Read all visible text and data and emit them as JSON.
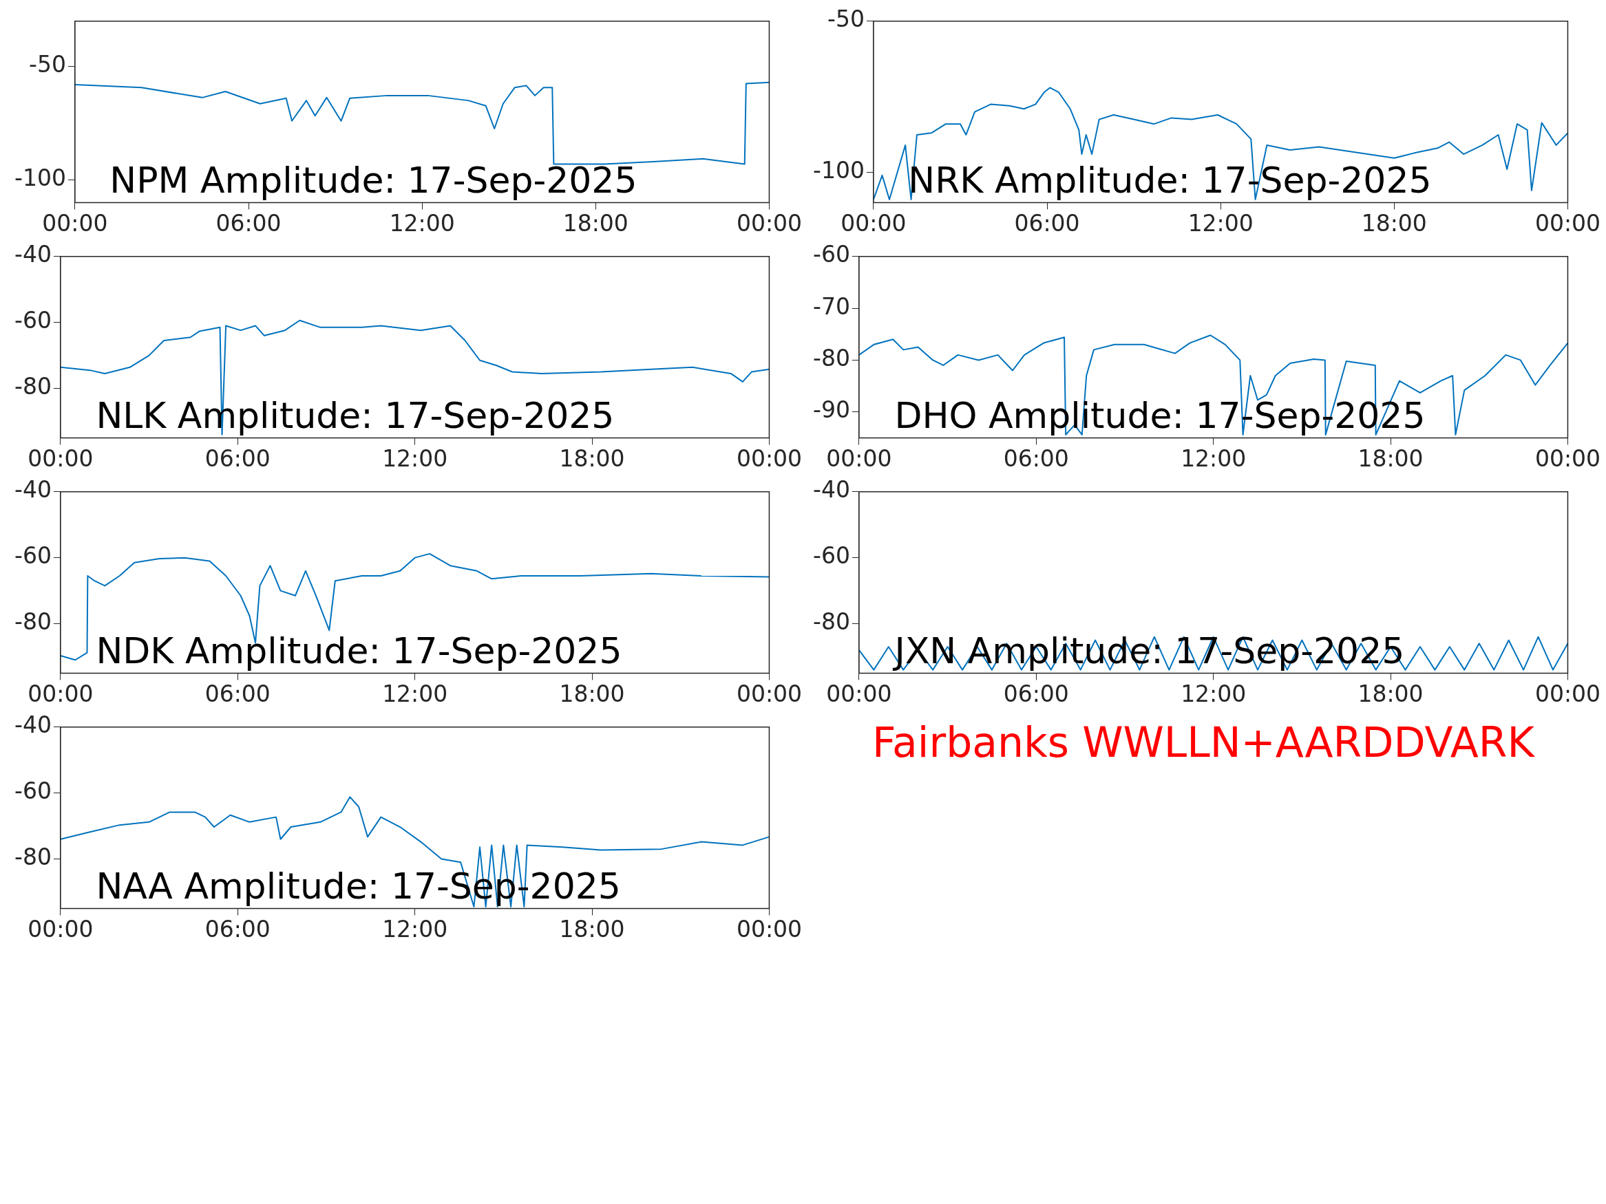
{
  "chart_data": [
    {
      "type": "line",
      "title": "NPM Amplitude: 17-Sep-2025",
      "color": "#0072bd",
      "xlim": [
        0,
        24
      ],
      "xticks": [
        {
          "value": 0,
          "label": "00:00"
        },
        {
          "value": 6,
          "label": "06:00"
        },
        {
          "value": 12,
          "label": "12:00"
        },
        {
          "value": 18,
          "label": "18:00"
        },
        {
          "value": 24,
          "label": "00:00"
        }
      ],
      "ylim": [
        -110,
        -30
      ],
      "yticks": [
        -100,
        -50
      ],
      "x": [
        0,
        2.3,
        4.4,
        5.2,
        6.4,
        7.3,
        7.5,
        8,
        8.3,
        8.7,
        9.2,
        9.5,
        10.8,
        12.2,
        13.6,
        14.2,
        14.5,
        14.8,
        15.2,
        15.6,
        15.9,
        16.2,
        16.5,
        16.55,
        18.3,
        20,
        21.7,
        23.15,
        23.2,
        24
      ],
      "values": [
        -58,
        -59.3,
        -63.7,
        -61,
        -66.4,
        -64,
        -74,
        -65,
        -71.7,
        -63.7,
        -74,
        -64,
        -62.8,
        -62.8,
        -65,
        -67.3,
        -77.4,
        -66.4,
        -59.3,
        -58.4,
        -62.8,
        -59.3,
        -59.3,
        -93,
        -93,
        -92,
        -90.7,
        -93,
        -57.5,
        -57
      ]
    },
    {
      "type": "line",
      "title": "NRK Amplitude: 17-Sep-2025",
      "color": "#0072bd",
      "xlim": [
        0,
        24
      ],
      "xticks": [
        {
          "value": 0,
          "label": "00:00"
        },
        {
          "value": 6,
          "label": "06:00"
        },
        {
          "value": 12,
          "label": "12:00"
        },
        {
          "value": 18,
          "label": "18:00"
        },
        {
          "value": 24,
          "label": "00:00"
        }
      ],
      "ylim": [
        -110,
        -50
      ],
      "yticks": [
        -100,
        -50
      ],
      "x": [
        0,
        0.3,
        0.55,
        1.1,
        1.3,
        1.5,
        2,
        2.5,
        3,
        3.2,
        3.5,
        4.05,
        4.7,
        5.2,
        5.6,
        5.9,
        6.1,
        6.4,
        6.8,
        7.1,
        7.2,
        7.35,
        7.55,
        7.8,
        8.3,
        9,
        9.7,
        10.3,
        11,
        11.9,
        12.55,
        13.05,
        13.2,
        13.6,
        14.4,
        15.4,
        16.8,
        18,
        18.7,
        19.5,
        19.9,
        20.4,
        21.05,
        21.6,
        21.9,
        22.25,
        22.6,
        22.75,
        23.1,
        23.6,
        24
      ],
      "values": [
        -109,
        -101,
        -109,
        -91,
        -109,
        -87.6,
        -87,
        -84,
        -84,
        -87.6,
        -80,
        -77.5,
        -78,
        -79,
        -77.5,
        -73.5,
        -72,
        -73.5,
        -79,
        -86,
        -94,
        -87.6,
        -94,
        -82.5,
        -81,
        -82.5,
        -84,
        -82,
        -82.5,
        -81,
        -84,
        -89,
        -109,
        -91,
        -92.6,
        -91.6,
        -93.6,
        -95.3,
        -93.6,
        -92,
        -90,
        -94,
        -91,
        -87.6,
        -99,
        -84,
        -86,
        -106,
        -83.6,
        -91,
        -87
      ]
    },
    {
      "type": "line",
      "title": "NLK Amplitude: 17-Sep-2025",
      "color": "#0072bd",
      "xlim": [
        0,
        24
      ],
      "xticks": [
        {
          "value": 0,
          "label": "00:00"
        },
        {
          "value": 6,
          "label": "06:00"
        },
        {
          "value": 12,
          "label": "12:00"
        },
        {
          "value": 18,
          "label": "18:00"
        },
        {
          "value": 24,
          "label": "00:00"
        }
      ],
      "ylim": [
        -95,
        -40
      ],
      "yticks": [
        -80,
        -60,
        -40
      ],
      "x": [
        0,
        1,
        1.5,
        2.35,
        3,
        3.5,
        4.4,
        4.7,
        5.4,
        5.47,
        5.6,
        6.1,
        6.6,
        6.9,
        7.6,
        8.1,
        8.8,
        10.2,
        10.85,
        12.2,
        13.2,
        13.7,
        14.2,
        14.75,
        15.3,
        16.3,
        18.3,
        20,
        21.4,
        22.7,
        23.1,
        23.4,
        24
      ],
      "values": [
        -73.6,
        -74.5,
        -75.5,
        -73.6,
        -70,
        -65.5,
        -64.5,
        -62.7,
        -61.5,
        -94,
        -61,
        -62.4,
        -61,
        -64,
        -62.4,
        -59.4,
        -61.5,
        -61.5,
        -61,
        -62.4,
        -61,
        -65.5,
        -71.5,
        -73,
        -75,
        -75.5,
        -75,
        -74.2,
        -73.6,
        -75.5,
        -78,
        -75,
        -74.2
      ]
    },
    {
      "type": "line",
      "title": "DHO Amplitude: 17-Sep-2025",
      "color": "#0072bd",
      "xlim": [
        0,
        24
      ],
      "xticks": [
        {
          "value": 0,
          "label": "00:00"
        },
        {
          "value": 6,
          "label": "06:00"
        },
        {
          "value": 12,
          "label": "12:00"
        },
        {
          "value": 18,
          "label": "18:00"
        },
        {
          "value": 24,
          "label": "00:00"
        }
      ],
      "ylim": [
        -95,
        -60
      ],
      "yticks": [
        -90,
        -80,
        -70,
        -60
      ],
      "x": [
        0,
        0.5,
        1.15,
        1.5,
        2,
        2.5,
        2.85,
        3.35,
        4.05,
        4.7,
        5.2,
        5.6,
        6.25,
        6.95,
        7,
        7.3,
        7.55,
        7.7,
        7.95,
        8.65,
        9.65,
        10.7,
        11.2,
        11.9,
        12.4,
        12.9,
        13,
        13.25,
        13.5,
        13.8,
        14.1,
        14.6,
        15.4,
        15.78,
        15.8,
        16.5,
        17.48,
        17.5,
        18.3,
        19,
        19.7,
        20.1,
        20.2,
        20.5,
        21.2,
        21.9,
        22.4,
        22.9,
        23.4,
        24
      ],
      "values": [
        -79,
        -77,
        -76,
        -78,
        -77.5,
        -80,
        -81,
        -79,
        -80,
        -79,
        -82,
        -79,
        -76.7,
        -75.6,
        -94.4,
        -92.5,
        -94.4,
        -83,
        -78,
        -77,
        -77,
        -78.7,
        -76.7,
        -75.2,
        -77,
        -80,
        -94.4,
        -83,
        -87.7,
        -86.7,
        -83,
        -80.6,
        -79.8,
        -80,
        -94.4,
        -80.2,
        -81,
        -94.4,
        -84,
        -86.3,
        -84,
        -83,
        -94.4,
        -85.8,
        -83,
        -79,
        -80,
        -84.8,
        -81,
        -76.7
      ]
    },
    {
      "type": "line",
      "title": "NDK Amplitude: 17-Sep-2025",
      "color": "#0072bd",
      "xlim": [
        0,
        24
      ],
      "xticks": [
        {
          "value": 0,
          "label": "00:00"
        },
        {
          "value": 6,
          "label": "06:00"
        },
        {
          "value": 12,
          "label": "12:00"
        },
        {
          "value": 18,
          "label": "18:00"
        },
        {
          "value": 24,
          "label": "00:00"
        }
      ],
      "ylim": [
        -95,
        -40
      ],
      "yticks": [
        -80,
        -60,
        -40
      ],
      "x": [
        0,
        0.5,
        0.9,
        0.92,
        1.15,
        1.5,
        2,
        2.5,
        3.35,
        4.2,
        5.05,
        5.6,
        6.1,
        6.4,
        6.6,
        6.75,
        7.1,
        7.45,
        7.95,
        8.3,
        8.65,
        9.1,
        9.3,
        10.2,
        10.85,
        11.5,
        12,
        12.5,
        13.2,
        14.1,
        14.6,
        15.6,
        17.6,
        20,
        21.7,
        24
      ],
      "values": [
        -89.7,
        -91,
        -88.8,
        -65.5,
        -67,
        -68.5,
        -65.5,
        -61.5,
        -60.3,
        -60,
        -61,
        -65.5,
        -71.5,
        -77.6,
        -85.8,
        -68.5,
        -62.4,
        -70,
        -71.5,
        -64,
        -71.5,
        -82,
        -67,
        -65.5,
        -65.5,
        -64,
        -60,
        -58.8,
        -62.4,
        -64,
        -66.4,
        -65.5,
        -65.5,
        -64.8,
        -65.5,
        -65.8
      ]
    },
    {
      "type": "line",
      "title": "JXN Amplitude: 17-Sep-2025",
      "color": "#0072bd",
      "xlim": [
        0,
        24
      ],
      "xticks": [
        {
          "value": 0,
          "label": "00:00"
        },
        {
          "value": 6,
          "label": "06:00"
        },
        {
          "value": 12,
          "label": "12:00"
        },
        {
          "value": 18,
          "label": "18:00"
        },
        {
          "value": 24,
          "label": "00:00"
        }
      ],
      "ylim": [
        -95,
        -40
      ],
      "yticks": [
        -80,
        -60,
        -40
      ],
      "x": [
        0,
        0.5,
        1,
        1.5,
        2,
        2.5,
        3,
        3.5,
        4,
        4.5,
        5,
        5.5,
        6,
        6.5,
        7,
        7.5,
        8,
        8.5,
        9,
        9.5,
        10,
        10.5,
        11,
        11.5,
        12,
        12.5,
        13,
        13.5,
        14,
        14.5,
        15,
        15.5,
        16,
        16.5,
        17,
        17.5,
        18,
        18.5,
        19,
        19.5,
        20,
        20.5,
        21,
        21.5,
        22,
        22.5,
        23,
        23.5,
        24
      ],
      "values": [
        -88,
        -94,
        -87,
        -94,
        -88,
        -94,
        -87,
        -94,
        -87,
        -94,
        -86,
        -94,
        -87,
        -94,
        -86,
        -94,
        -85,
        -94,
        -85,
        -94,
        -84,
        -94,
        -84,
        -94,
        -84,
        -94,
        -84,
        -94,
        -85,
        -94,
        -85,
        -94,
        -86,
        -94,
        -86,
        -94,
        -87,
        -94,
        -87,
        -94,
        -87,
        -94,
        -86,
        -94,
        -85,
        -94,
        -84,
        -94,
        -86
      ]
    },
    {
      "type": "line",
      "title": "NAA Amplitude: 17-Sep-2025",
      "color": "#0072bd",
      "xlim": [
        0,
        24
      ],
      "xticks": [
        {
          "value": 0,
          "label": "00:00"
        },
        {
          "value": 6,
          "label": "06:00"
        },
        {
          "value": 12,
          "label": "12:00"
        },
        {
          "value": 18,
          "label": "18:00"
        },
        {
          "value": 24,
          "label": "00:00"
        }
      ],
      "ylim": [
        -95,
        -40
      ],
      "yticks": [
        -80,
        -60,
        -40
      ],
      "x": [
        0,
        1,
        2,
        3,
        3.7,
        4.55,
        4.9,
        5.2,
        5.75,
        6.4,
        7.3,
        7.45,
        7.8,
        8.8,
        9.5,
        9.8,
        10.1,
        10.4,
        10.85,
        11.5,
        12.2,
        12.9,
        13.55,
        14,
        14.2,
        14.4,
        14.6,
        14.8,
        15,
        15.25,
        15.45,
        15.7,
        15.8,
        17,
        18.3,
        20.35,
        21.7,
        23.1,
        24
      ],
      "values": [
        -74,
        -71.8,
        -69.7,
        -68.8,
        -65.8,
        -65.8,
        -67.3,
        -70.3,
        -66.7,
        -68.8,
        -67.3,
        -74,
        -70.3,
        -68.8,
        -65.8,
        -61.2,
        -64.2,
        -73.3,
        -67.3,
        -70.3,
        -74.8,
        -80,
        -81,
        -94.5,
        -76.4,
        -94.5,
        -75.8,
        -94.5,
        -75.8,
        -94.5,
        -75.8,
        -94.5,
        -75.8,
        -76.4,
        -77.3,
        -77,
        -74.8,
        -75.8,
        -73.3
      ]
    },
    {
      "type": "other",
      "annotations": [
        "Fairbanks WWLLN+AARDDVARK"
      ]
    }
  ]
}
